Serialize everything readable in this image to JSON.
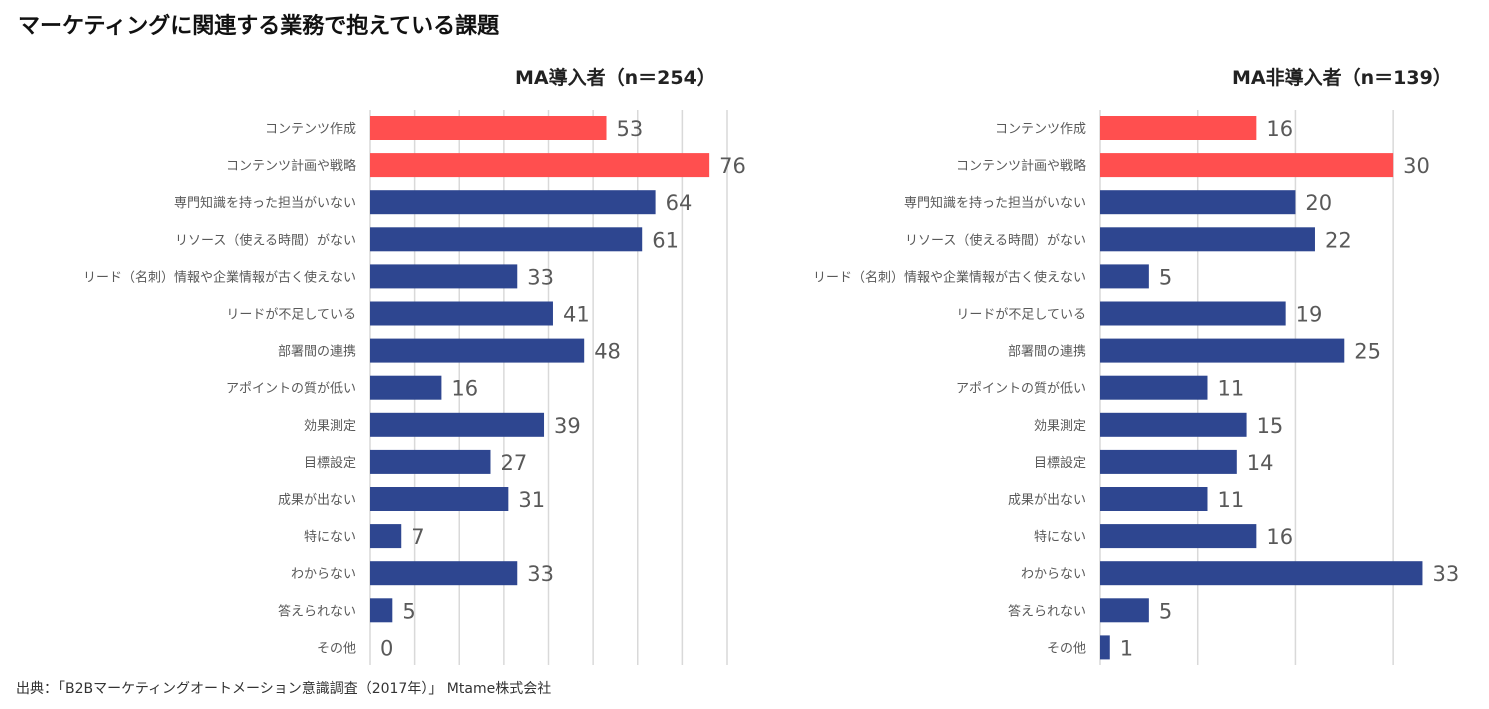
{
  "title": "マーケティングに関連する業務で抱えている課題",
  "source": "出典：「B2Bマーケティングオートメーション意識調査（2017年）」 Mtame株式会社",
  "colors": {
    "highlight": "#ff4f4f",
    "normal": "#2e4690",
    "grid": "#d9d9d9",
    "label": "#595959",
    "value": "#595959"
  },
  "chart_data": [
    {
      "type": "bar",
      "orientation": "horizontal",
      "title": "MA導入者（n＝254）",
      "categories": [
        "コンテンツ作成",
        "コンテンツ計画や戦略",
        "専門知識を持った担当がいない",
        "リソース（使える時間）がない",
        "リード（名刺）情報や企業情報が古く使えない",
        "リードが不足している",
        "部署間の連携",
        "アポイントの質が低い",
        "効果測定",
        "目標設定",
        "成果が出ない",
        "特にない",
        "わからない",
        "答えられない",
        "その他"
      ],
      "values": [
        53,
        76,
        64,
        61,
        33,
        41,
        48,
        16,
        39,
        27,
        31,
        7,
        33,
        5,
        0
      ],
      "highlight": [
        true,
        true,
        false,
        false,
        false,
        false,
        false,
        false,
        false,
        false,
        false,
        false,
        false,
        false,
        false
      ],
      "xlim": [
        0,
        80
      ],
      "grid_step": 10
    },
    {
      "type": "bar",
      "orientation": "horizontal",
      "title": "MA非導入者（n＝139）",
      "categories": [
        "コンテンツ作成",
        "コンテンツ計画や戦略",
        "専門知識を持った担当がいない",
        "リソース（使える時間）がない",
        "リード（名刺）情報や企業情報が古く使えない",
        "リードが不足している",
        "部署間の連携",
        "アポイントの質が低い",
        "効果測定",
        "目標設定",
        "成果が出ない",
        "特にない",
        "わからない",
        "答えられない",
        "その他"
      ],
      "values": [
        16,
        30,
        20,
        22,
        5,
        19,
        25,
        11,
        15,
        14,
        11,
        16,
        33,
        5,
        1
      ],
      "highlight": [
        true,
        true,
        false,
        false,
        false,
        false,
        false,
        false,
        false,
        false,
        false,
        false,
        false,
        false,
        false
      ],
      "xlim": [
        0,
        35
      ],
      "grid_step": 10
    }
  ]
}
